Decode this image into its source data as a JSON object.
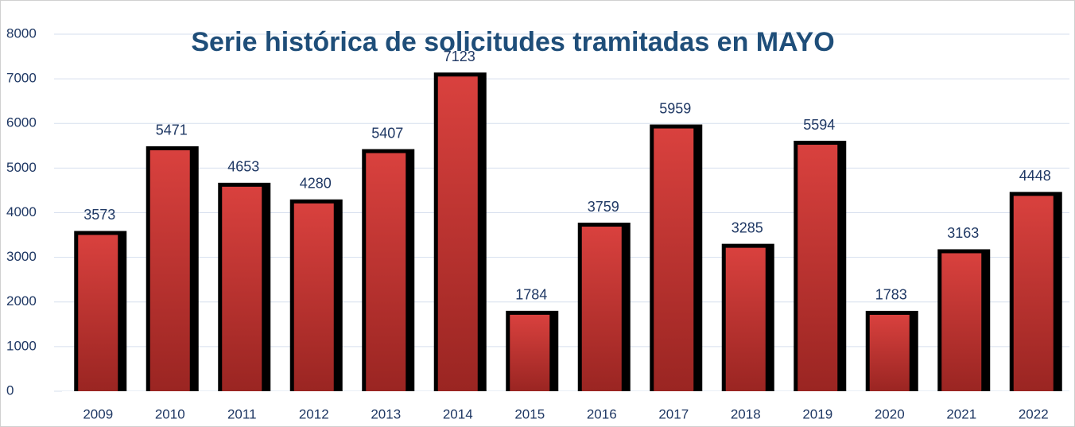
{
  "chart_data": {
    "type": "bar",
    "title": "Serie histórica de solicitudes tramitadas en MAYO",
    "categories": [
      "2009",
      "2010",
      "2011",
      "2012",
      "2013",
      "2014",
      "2015",
      "2016",
      "2017",
      "2018",
      "2019",
      "2020",
      "2021",
      "2022"
    ],
    "values": [
      3573,
      5471,
      4653,
      4280,
      5407,
      7123,
      1784,
      3759,
      5959,
      3285,
      5594,
      1783,
      3163,
      4448
    ],
    "color": "#c0302f",
    "ylim": [
      0,
      8000
    ],
    "yticks": [
      0,
      1000,
      2000,
      3000,
      4000,
      5000,
      6000,
      7000,
      8000
    ],
    "grid": true
  }
}
